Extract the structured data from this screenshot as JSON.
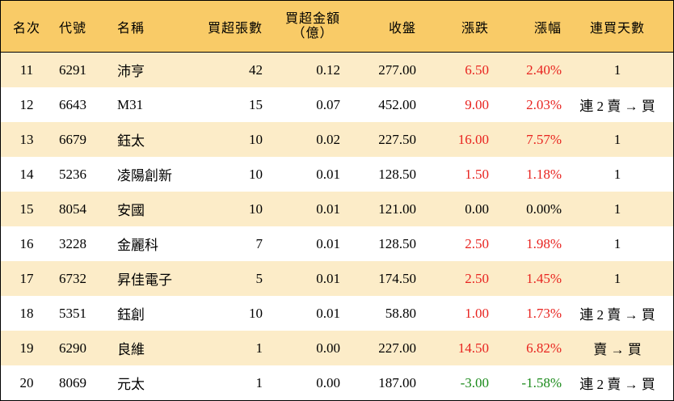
{
  "header": {
    "rank": "名次",
    "code": "代號",
    "name": "名稱",
    "volume": "買超張數",
    "amount_line1": "買超金額",
    "amount_line2": "（億）",
    "close": "收盤",
    "change": "漲跌",
    "pct": "漲幅",
    "days": "連買天數"
  },
  "colors": {
    "header_bg": "#f9cb67",
    "band_bg": "#fcecc8",
    "up": "#e8231f",
    "down": "#1a8a1a",
    "flat": "#000000"
  },
  "rows": [
    {
      "rank": "11",
      "code": "6291",
      "name": "沛亨",
      "volume": "42",
      "amount": "0.12",
      "close": "277.00",
      "change": "6.50",
      "pct": "2.40%",
      "days": "1",
      "trend": "up"
    },
    {
      "rank": "12",
      "code": "6643",
      "name": "M31",
      "volume": "15",
      "amount": "0.07",
      "close": "452.00",
      "change": "9.00",
      "pct": "2.03%",
      "days": "連 2 賣 → 買",
      "trend": "up"
    },
    {
      "rank": "13",
      "code": "6679",
      "name": "鈺太",
      "volume": "10",
      "amount": "0.02",
      "close": "227.50",
      "change": "16.00",
      "pct": "7.57%",
      "days": "1",
      "trend": "up"
    },
    {
      "rank": "14",
      "code": "5236",
      "name": "凌陽創新",
      "volume": "10",
      "amount": "0.01",
      "close": "128.50",
      "change": "1.50",
      "pct": "1.18%",
      "days": "1",
      "trend": "up"
    },
    {
      "rank": "15",
      "code": "8054",
      "name": "安國",
      "volume": "10",
      "amount": "0.01",
      "close": "121.00",
      "change": "0.00",
      "pct": "0.00%",
      "days": "1",
      "trend": "flat"
    },
    {
      "rank": "16",
      "code": "3228",
      "name": "金麗科",
      "volume": "7",
      "amount": "0.01",
      "close": "128.50",
      "change": "2.50",
      "pct": "1.98%",
      "days": "1",
      "trend": "up"
    },
    {
      "rank": "17",
      "code": "6732",
      "name": "昇佳電子",
      "volume": "5",
      "amount": "0.01",
      "close": "174.50",
      "change": "2.50",
      "pct": "1.45%",
      "days": "1",
      "trend": "up"
    },
    {
      "rank": "18",
      "code": "5351",
      "name": "鈺創",
      "volume": "10",
      "amount": "0.01",
      "close": "58.80",
      "change": "1.00",
      "pct": "1.73%",
      "days": "連 2 賣 → 買",
      "trend": "up"
    },
    {
      "rank": "19",
      "code": "6290",
      "name": "良維",
      "volume": "1",
      "amount": "0.00",
      "close": "227.00",
      "change": "14.50",
      "pct": "6.82%",
      "days": "賣 → 買",
      "trend": "up"
    },
    {
      "rank": "20",
      "code": "8069",
      "name": "元太",
      "volume": "1",
      "amount": "0.00",
      "close": "187.00",
      "change": "-3.00",
      "pct": "-1.58%",
      "days": "連 2 賣 → 買",
      "trend": "down"
    }
  ]
}
